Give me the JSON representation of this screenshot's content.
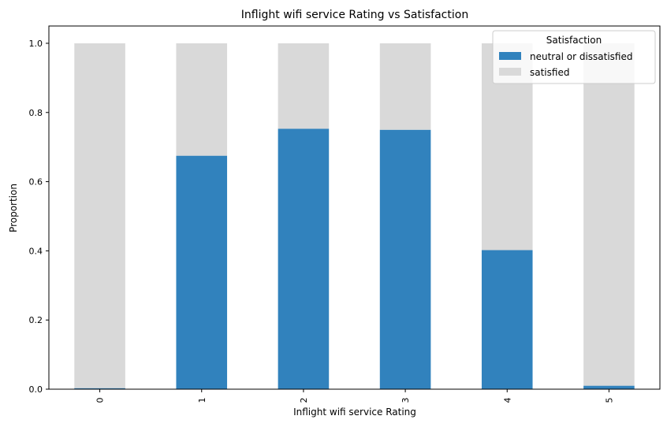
{
  "chart_data": {
    "type": "bar",
    "stacked": true,
    "title": "Inflight wifi service Rating vs Satisfaction",
    "xlabel": "Inflight wifi service Rating",
    "ylabel": "Proportion",
    "categories": [
      "0",
      "1",
      "2",
      "3",
      "4",
      "5"
    ],
    "series": [
      {
        "name": "neutral or dissatisfied",
        "color": "#3182bd",
        "values": [
          0.003,
          0.675,
          0.753,
          0.75,
          0.402,
          0.01
        ]
      },
      {
        "name": "satisfied",
        "color": "#d9d9d9",
        "values": [
          0.997,
          0.325,
          0.247,
          0.25,
          0.598,
          0.99
        ]
      }
    ],
    "ylim": [
      0,
      1.05
    ],
    "yticks": [
      "0.0",
      "0.2",
      "0.4",
      "0.6",
      "0.8",
      "1.0"
    ],
    "grid": false,
    "legend": {
      "title": "Satisfaction",
      "placement": "top-right"
    }
  }
}
